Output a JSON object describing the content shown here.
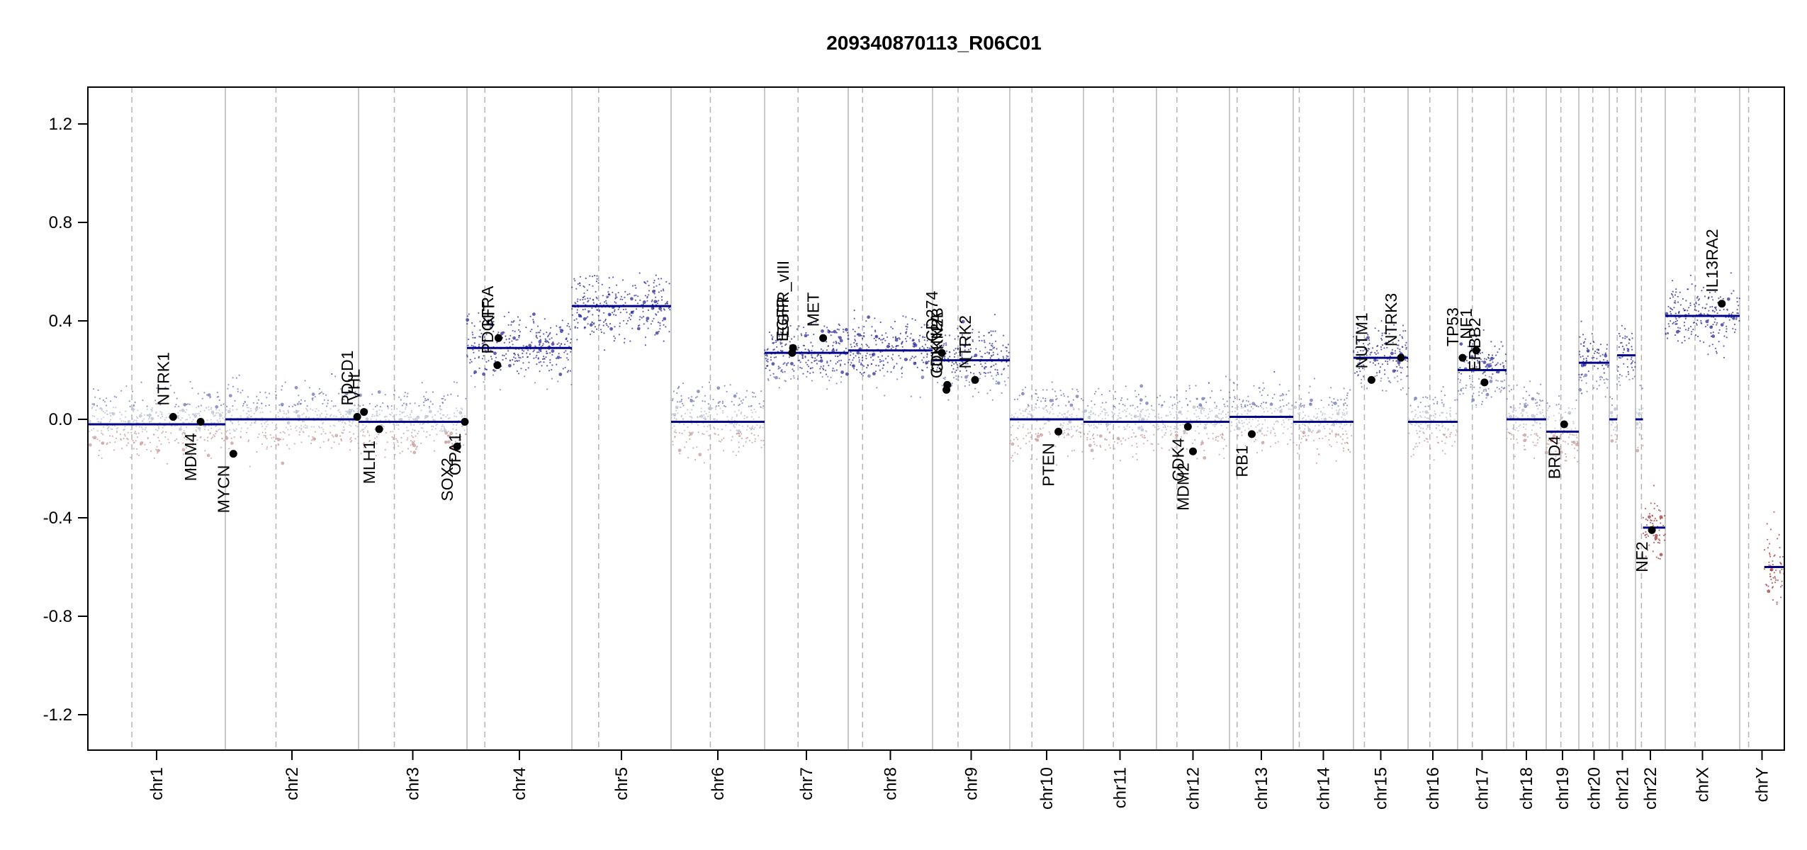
{
  "chart_data": {
    "type": "scatter",
    "title": "209340870113_R06C01",
    "xlabel": "",
    "ylabel": "",
    "ylim": [
      -1.35,
      1.35
    ],
    "yticks": [
      -1.2,
      -0.8,
      -0.4,
      0.0,
      0.4,
      0.8,
      1.2
    ],
    "ytick_labels": [
      "-1.2",
      "-0.8",
      "-0.4",
      "0.0",
      "0.4",
      "0.8",
      "1.2"
    ],
    "grid": false,
    "legend": "none",
    "colors": {
      "segment": "#00008b",
      "gain": "#2b2b9a",
      "neutral": "#b8bdd0",
      "loss": "#a23a3a",
      "gene": "#000000",
      "frame": "#000000"
    },
    "chromosomes": [
      {
        "name": "chr1",
        "segments": [
          {
            "from": 0.0,
            "to": 1.0,
            "value": -0.02
          }
        ]
      },
      {
        "name": "chr2",
        "segments": [
          {
            "from": 0.0,
            "to": 1.0,
            "value": 0.0
          }
        ]
      },
      {
        "name": "chr3",
        "segments": [
          {
            "from": 0.0,
            "to": 1.0,
            "value": -0.01
          }
        ]
      },
      {
        "name": "chr4",
        "segments": [
          {
            "from": 0.0,
            "to": 1.0,
            "value": 0.29
          }
        ]
      },
      {
        "name": "chr5",
        "segments": [
          {
            "from": 0.0,
            "to": 1.0,
            "value": 0.46
          }
        ]
      },
      {
        "name": "chr6",
        "segments": [
          {
            "from": 0.0,
            "to": 1.0,
            "value": -0.01
          }
        ]
      },
      {
        "name": "chr7",
        "segments": [
          {
            "from": 0.0,
            "to": 1.0,
            "value": 0.27
          }
        ]
      },
      {
        "name": "chr8",
        "segments": [
          {
            "from": 0.0,
            "to": 1.0,
            "value": 0.28
          }
        ]
      },
      {
        "name": "chr9",
        "segments": [
          {
            "from": 0.0,
            "to": 1.0,
            "value": 0.24
          }
        ]
      },
      {
        "name": "chr10",
        "segments": [
          {
            "from": 0.0,
            "to": 1.0,
            "value": 0.0
          }
        ]
      },
      {
        "name": "chr11",
        "segments": [
          {
            "from": 0.0,
            "to": 1.0,
            "value": -0.01
          }
        ]
      },
      {
        "name": "chr12",
        "segments": [
          {
            "from": 0.0,
            "to": 1.0,
            "value": -0.01
          }
        ]
      },
      {
        "name": "chr13",
        "segments": [
          {
            "from": 0.0,
            "to": 1.0,
            "value": 0.01
          }
        ]
      },
      {
        "name": "chr14",
        "segments": [
          {
            "from": 0.0,
            "to": 1.0,
            "value": -0.01
          }
        ]
      },
      {
        "name": "chr15",
        "segments": [
          {
            "from": 0.0,
            "to": 1.0,
            "value": 0.25
          }
        ]
      },
      {
        "name": "chr16",
        "segments": [
          {
            "from": 0.0,
            "to": 1.0,
            "value": -0.01
          }
        ]
      },
      {
        "name": "chr17",
        "segments": [
          {
            "from": 0.0,
            "to": 1.0,
            "value": 0.2
          }
        ]
      },
      {
        "name": "chr18",
        "segments": [
          {
            "from": 0.0,
            "to": 1.0,
            "value": 0.0
          }
        ]
      },
      {
        "name": "chr19",
        "segments": [
          {
            "from": 0.0,
            "to": 1.0,
            "value": -0.05
          }
        ]
      },
      {
        "name": "chr20",
        "segments": [
          {
            "from": 0.0,
            "to": 1.0,
            "value": 0.23
          }
        ]
      },
      {
        "name": "chr21",
        "segments": [
          {
            "from": 0.0,
            "to": 0.3,
            "value": 0.0
          },
          {
            "from": 0.3,
            "to": 1.0,
            "value": 0.26
          }
        ]
      },
      {
        "name": "chr22",
        "segments": [
          {
            "from": 0.0,
            "to": 0.25,
            "value": 0.0
          },
          {
            "from": 0.25,
            "to": 1.0,
            "value": -0.44
          }
        ]
      },
      {
        "name": "chrX",
        "segments": [
          {
            "from": 0.0,
            "to": 1.0,
            "value": 0.42
          }
        ]
      },
      {
        "name": "chrY",
        "segments": [
          {
            "from": 0.55,
            "to": 1.0,
            "value": -0.6
          }
        ]
      }
    ],
    "genes": [
      {
        "name": "NTRK1",
        "chr": "chr1",
        "pos": 0.62,
        "value": 0.01
      },
      {
        "name": "MDM4",
        "chr": "chr1",
        "pos": 0.82,
        "value": -0.01
      },
      {
        "name": "MYCN",
        "chr": "chr2",
        "pos": 0.06,
        "value": -0.14
      },
      {
        "name": "PDCD1",
        "chr": "chr2",
        "pos": 0.99,
        "value": 0.01
      },
      {
        "name": "VHL",
        "chr": "chr3",
        "pos": 0.05,
        "value": 0.03
      },
      {
        "name": "MLH1",
        "chr": "chr3",
        "pos": 0.19,
        "value": -0.04
      },
      {
        "name": "SOX2",
        "chr": "chr3",
        "pos": 0.91,
        "value": -0.11
      },
      {
        "name": "OPA1",
        "chr": "chr3",
        "pos": 0.98,
        "value": -0.01
      },
      {
        "name": "PDGFRA",
        "chr": "chr4",
        "pos": 0.29,
        "value": 0.22
      },
      {
        "name": "KIT",
        "chr": "chr4",
        "pos": 0.3,
        "value": 0.33
      },
      {
        "name": "EGFR",
        "chr": "chr7",
        "pos": 0.33,
        "value": 0.27
      },
      {
        "name": "EGFR_vIII",
        "chr": "chr7",
        "pos": 0.34,
        "value": 0.29
      },
      {
        "name": "MET",
        "chr": "chr7",
        "pos": 0.7,
        "value": 0.33
      },
      {
        "name": "CDKN2A",
        "chr": "chr9",
        "pos": 0.18,
        "value": 0.12
      },
      {
        "name": "CDKN2B",
        "chr": "chr9",
        "pos": 0.19,
        "value": 0.14
      },
      {
        "name": "CD274",
        "chr": "chr9",
        "pos": 0.12,
        "value": 0.27
      },
      {
        "name": "NTRK2",
        "chr": "chr9",
        "pos": 0.55,
        "value": 0.16
      },
      {
        "name": "PTEN",
        "chr": "chr10",
        "pos": 0.66,
        "value": -0.05
      },
      {
        "name": "CDK4",
        "chr": "chr12",
        "pos": 0.43,
        "value": -0.03
      },
      {
        "name": "MDM2",
        "chr": "chr12",
        "pos": 0.5,
        "value": -0.13
      },
      {
        "name": "RB1",
        "chr": "chr13",
        "pos": 0.35,
        "value": -0.06
      },
      {
        "name": "NUTM1",
        "chr": "chr15",
        "pos": 0.33,
        "value": 0.16
      },
      {
        "name": "NTRK3",
        "chr": "chr15",
        "pos": 0.87,
        "value": 0.25
      },
      {
        "name": "TP53",
        "chr": "chr17",
        "pos": 0.1,
        "value": 0.25
      },
      {
        "name": "NF1",
        "chr": "chr17",
        "pos": 0.38,
        "value": 0.28
      },
      {
        "name": "ERBB2",
        "chr": "chr17",
        "pos": 0.55,
        "value": 0.15
      },
      {
        "name": "BRD4",
        "chr": "chr19",
        "pos": 0.55,
        "value": -0.02
      },
      {
        "name": "NF2",
        "chr": "chr22",
        "pos": 0.55,
        "value": -0.45
      },
      {
        "name": "IL13RA2",
        "chr": "chrX",
        "pos": 0.76,
        "value": 0.47
      }
    ]
  }
}
